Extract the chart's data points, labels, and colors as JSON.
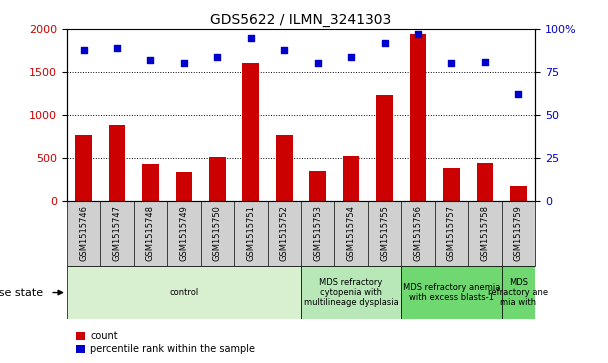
{
  "title": "GDS5622 / ILMN_3241303",
  "samples": [
    "GSM1515746",
    "GSM1515747",
    "GSM1515748",
    "GSM1515749",
    "GSM1515750",
    "GSM1515751",
    "GSM1515752",
    "GSM1515753",
    "GSM1515754",
    "GSM1515755",
    "GSM1515756",
    "GSM1515757",
    "GSM1515758",
    "GSM1515759"
  ],
  "counts": [
    770,
    880,
    430,
    340,
    510,
    1600,
    770,
    350,
    520,
    1230,
    1940,
    380,
    440,
    175
  ],
  "percentiles": [
    88,
    89,
    82,
    80,
    84,
    95,
    88,
    80,
    84,
    92,
    97,
    80,
    81,
    62
  ],
  "ylim_left": [
    0,
    2000
  ],
  "ylim_right": [
    0,
    100
  ],
  "yticks_left": [
    0,
    500,
    1000,
    1500,
    2000
  ],
  "yticks_right": [
    0,
    25,
    50,
    75,
    100
  ],
  "disease_groups": [
    {
      "label": "control",
      "start": 0,
      "end": 7,
      "color": "#d8f0d0"
    },
    {
      "label": "MDS refractory\ncytopenia with\nmultilineage dysplasia",
      "start": 7,
      "end": 10,
      "color": "#b8e8b8"
    },
    {
      "label": "MDS refractory anemia\nwith excess blasts-1",
      "start": 10,
      "end": 13,
      "color": "#70d870"
    },
    {
      "label": "MDS\nrefractory ane\nmia with",
      "start": 13,
      "end": 14,
      "color": "#70d870"
    }
  ],
  "bar_color": "#cc0000",
  "dot_color": "#0000cc",
  "tick_label_color_left": "#cc0000",
  "tick_label_color_right": "#0000cc",
  "grid_color": "#000000",
  "bar_width": 0.5,
  "sample_box_color": "#d0d0d0",
  "disease_state_label": "disease state"
}
